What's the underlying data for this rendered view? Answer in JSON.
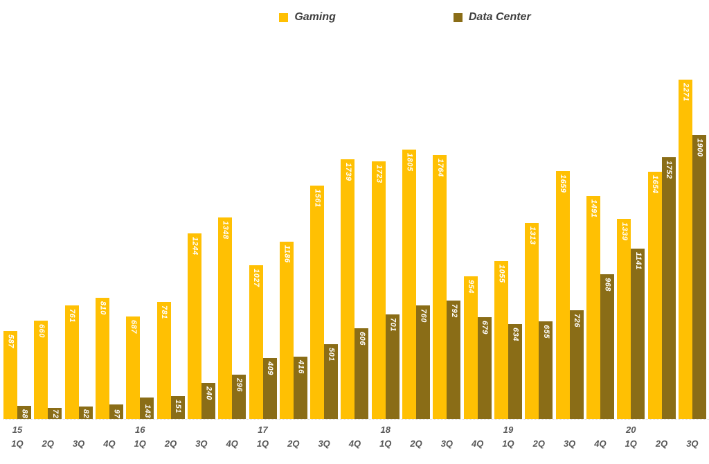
{
  "legend": {
    "items": [
      {
        "label": "Gaming",
        "color": "#ffc003"
      },
      {
        "label": "Data Center",
        "color": "#8a6d17"
      }
    ]
  },
  "chart_data": {
    "type": "bar",
    "title": "",
    "legend_position": "top",
    "grid": false,
    "ylim": [
      0,
      2271
    ],
    "value_label_style": "white, bold italic, rotated 90deg, inside end of bar",
    "categories": [
      {
        "year": "15",
        "quarter": "1Q"
      },
      {
        "year": "",
        "quarter": "2Q"
      },
      {
        "year": "",
        "quarter": "3Q"
      },
      {
        "year": "",
        "quarter": "4Q"
      },
      {
        "year": "16",
        "quarter": "1Q"
      },
      {
        "year": "",
        "quarter": "2Q"
      },
      {
        "year": "",
        "quarter": "3Q"
      },
      {
        "year": "",
        "quarter": "4Q"
      },
      {
        "year": "17",
        "quarter": "1Q"
      },
      {
        "year": "",
        "quarter": "2Q"
      },
      {
        "year": "",
        "quarter": "3Q"
      },
      {
        "year": "",
        "quarter": "4Q"
      },
      {
        "year": "18",
        "quarter": "1Q"
      },
      {
        "year": "",
        "quarter": "2Q"
      },
      {
        "year": "",
        "quarter": "3Q"
      },
      {
        "year": "",
        "quarter": "4Q"
      },
      {
        "year": "19",
        "quarter": "1Q"
      },
      {
        "year": "",
        "quarter": "2Q"
      },
      {
        "year": "",
        "quarter": "3Q"
      },
      {
        "year": "",
        "quarter": "4Q"
      },
      {
        "year": "20",
        "quarter": "1Q"
      },
      {
        "year": "",
        "quarter": "2Q"
      },
      {
        "year": "",
        "quarter": "3Q"
      }
    ],
    "series": [
      {
        "name": "Gaming",
        "color": "#ffc003",
        "values": [
          587,
          660,
          761,
          810,
          687,
          781,
          1244,
          1348,
          1027,
          1186,
          1561,
          1739,
          1723,
          1805,
          1764,
          954,
          1055,
          1313,
          1659,
          1491,
          1339,
          1654,
          2271
        ]
      },
      {
        "name": "Data Center",
        "color": "#8a6d17",
        "values": [
          88,
          72,
          82,
          97,
          143,
          151,
          240,
          296,
          409,
          416,
          501,
          606,
          701,
          760,
          792,
          679,
          634,
          655,
          726,
          968,
          1141,
          1752,
          1900
        ]
      }
    ]
  }
}
